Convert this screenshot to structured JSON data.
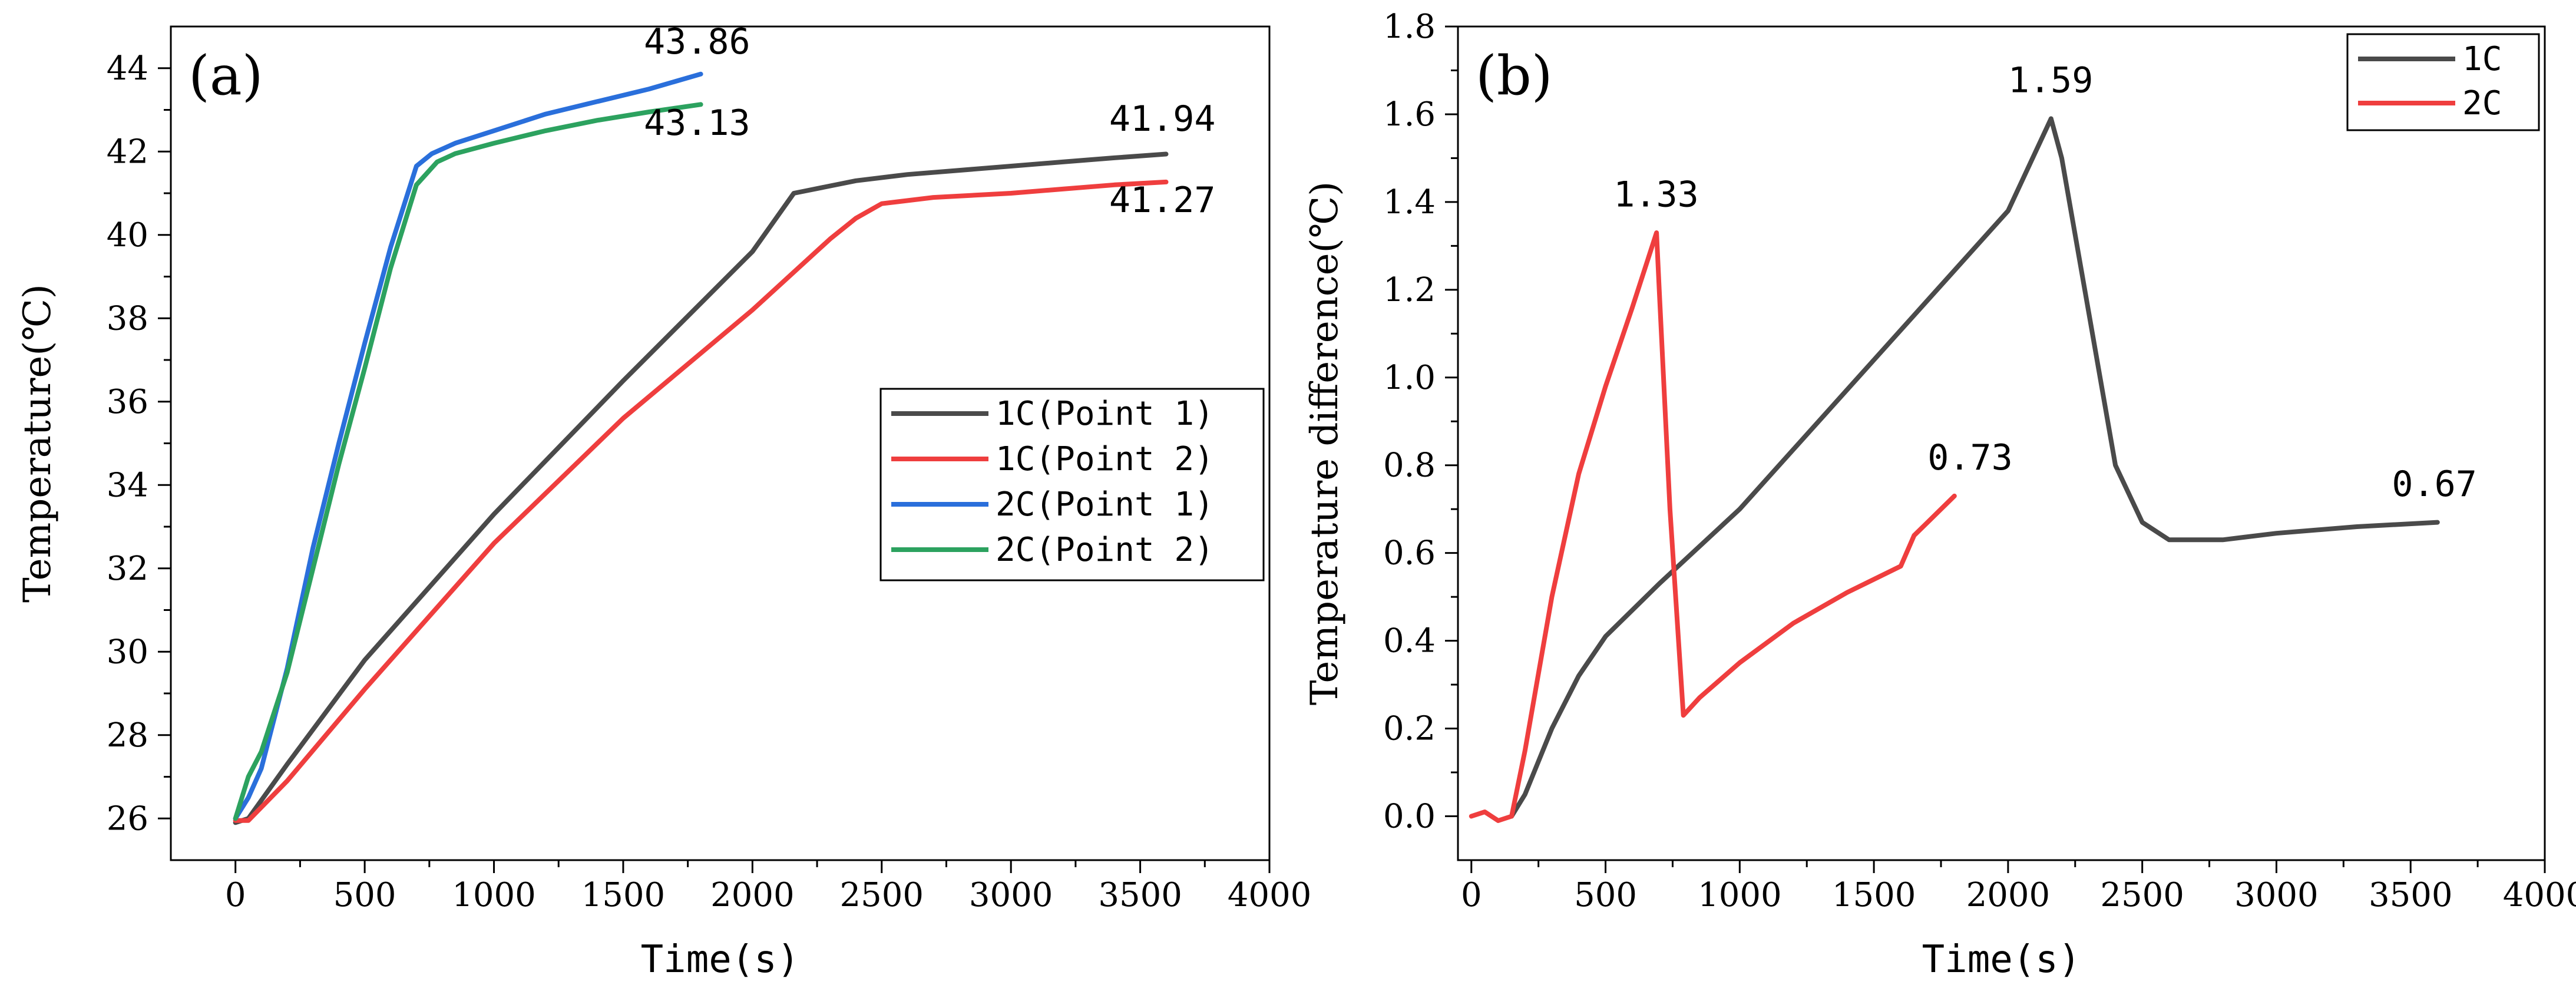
{
  "chart_data": [
    {
      "type": "line",
      "panel_label": "(a)",
      "xlabel": "Time(s)",
      "ylabel": "Temperature(℃)",
      "xlim": [
        -250,
        4000
      ],
      "ylim": [
        25.0,
        45.0
      ],
      "xticks": [
        0,
        500,
        1000,
        1500,
        2000,
        2500,
        3000,
        3500,
        4000
      ],
      "yticks": [
        26,
        28,
        30,
        32,
        34,
        36,
        38,
        40,
        42,
        44
      ],
      "xtick_labels": [
        "0",
        "500",
        "1000",
        "1500",
        "2000",
        "2500",
        "3000",
        "3500",
        "4000"
      ],
      "ytick_labels": [
        "26",
        "28",
        "30",
        "32",
        "34",
        "36",
        "38",
        "40",
        "42",
        "44"
      ],
      "legend_position": "center-right",
      "series": [
        {
          "name": "1C(Point 1)",
          "color": "#4a4a4a",
          "x": [
            0,
            50,
            200,
            500,
            1000,
            1500,
            2000,
            2160,
            2200,
            2400,
            2600,
            2800,
            3000,
            3200,
            3400,
            3600
          ],
          "y": [
            25.9,
            26.0,
            27.3,
            29.8,
            33.3,
            36.5,
            39.6,
            41.0,
            41.05,
            41.3,
            41.45,
            41.55,
            41.65,
            41.75,
            41.85,
            41.94
          ]
        },
        {
          "name": "1C(Point 2)",
          "color": "#ef3e3e",
          "x": [
            0,
            50,
            200,
            500,
            1000,
            1500,
            2000,
            2300,
            2400,
            2500,
            2700,
            3000,
            3200,
            3400,
            3600
          ],
          "y": [
            25.95,
            25.95,
            26.9,
            29.1,
            32.6,
            35.6,
            38.2,
            39.9,
            40.4,
            40.75,
            40.9,
            41.0,
            41.1,
            41.2,
            41.27
          ]
        },
        {
          "name": "2C(Point 1)",
          "color": "#2a6fdb",
          "x": [
            0,
            50,
            100,
            200,
            300,
            400,
            500,
            600,
            700,
            760,
            850,
            1000,
            1200,
            1400,
            1600,
            1800
          ],
          "y": [
            26.0,
            26.5,
            27.2,
            29.6,
            32.5,
            35.0,
            37.4,
            39.7,
            41.65,
            41.95,
            42.2,
            42.5,
            42.9,
            43.2,
            43.5,
            43.86
          ]
        },
        {
          "name": "2C(Point 2)",
          "color": "#2ca25f",
          "x": [
            0,
            50,
            100,
            200,
            300,
            400,
            500,
            600,
            700,
            780,
            850,
            1000,
            1200,
            1400,
            1600,
            1800
          ],
          "y": [
            26.0,
            27.0,
            27.6,
            29.5,
            32.0,
            34.5,
            36.8,
            39.2,
            41.2,
            41.75,
            41.95,
            42.2,
            42.5,
            42.75,
            42.95,
            43.13
          ]
        }
      ],
      "annotations": [
        {
          "text": "43.86",
          "x": 1580,
          "y": 44.35
        },
        {
          "text": "43.13",
          "x": 1580,
          "y": 42.4
        },
        {
          "text": "41.94",
          "x": 3380,
          "y": 42.5
        },
        {
          "text": "41.27",
          "x": 3380,
          "y": 40.55
        }
      ]
    },
    {
      "type": "line",
      "panel_label": "(b)",
      "xlabel": "Time(s)",
      "ylabel": "Temperature difference(℃)",
      "xlim": [
        -50,
        4000
      ],
      "ylim": [
        -0.1,
        1.8
      ],
      "xticks": [
        0,
        500,
        1000,
        1500,
        2000,
        2500,
        3000,
        3500,
        4000
      ],
      "yticks": [
        0.0,
        0.2,
        0.4,
        0.6,
        0.8,
        1.0,
        1.2,
        1.4,
        1.6,
        1.8
      ],
      "xtick_labels": [
        "0",
        "500",
        "1000",
        "1500",
        "2000",
        "2500",
        "3000",
        "3500",
        "4000"
      ],
      "ytick_labels": [
        "0.0",
        "0.2",
        "0.4",
        "0.6",
        "0.8",
        "1.0",
        "1.2",
        "1.4",
        "1.6",
        "1.8"
      ],
      "legend_position": "top-right",
      "series": [
        {
          "name": "1C",
          "color": "#4a4a4a",
          "x": [
            150,
            200,
            300,
            400,
            500,
            700,
            1000,
            1500,
            2000,
            2160,
            2200,
            2300,
            2400,
            2500,
            2600,
            2700,
            2800,
            3000,
            3300,
            3600
          ],
          "y": [
            0.0,
            0.05,
            0.2,
            0.32,
            0.41,
            0.53,
            0.7,
            1.04,
            1.38,
            1.59,
            1.5,
            1.15,
            0.8,
            0.67,
            0.63,
            0.63,
            0.63,
            0.645,
            0.66,
            0.67
          ]
        },
        {
          "name": "2C",
          "color": "#ef3e3e",
          "x": [
            0,
            50,
            100,
            150,
            200,
            300,
            400,
            500,
            600,
            690,
            700,
            740,
            790,
            850,
            1000,
            1200,
            1400,
            1600,
            1650,
            1700,
            1800
          ],
          "y": [
            0.0,
            0.01,
            -0.01,
            0.0,
            0.15,
            0.5,
            0.78,
            0.98,
            1.16,
            1.33,
            1.2,
            0.7,
            0.23,
            0.27,
            0.35,
            0.44,
            0.51,
            0.57,
            0.64,
            0.67,
            0.73
          ]
        }
      ],
      "annotations": [
        {
          "text": "1.33",
          "x": 530,
          "y": 1.39
        },
        {
          "text": "1.59",
          "x": 2000,
          "y": 1.65
        },
        {
          "text": "0.73",
          "x": 1700,
          "y": 0.79
        },
        {
          "text": "0.67",
          "x": 3430,
          "y": 0.73
        }
      ]
    }
  ]
}
